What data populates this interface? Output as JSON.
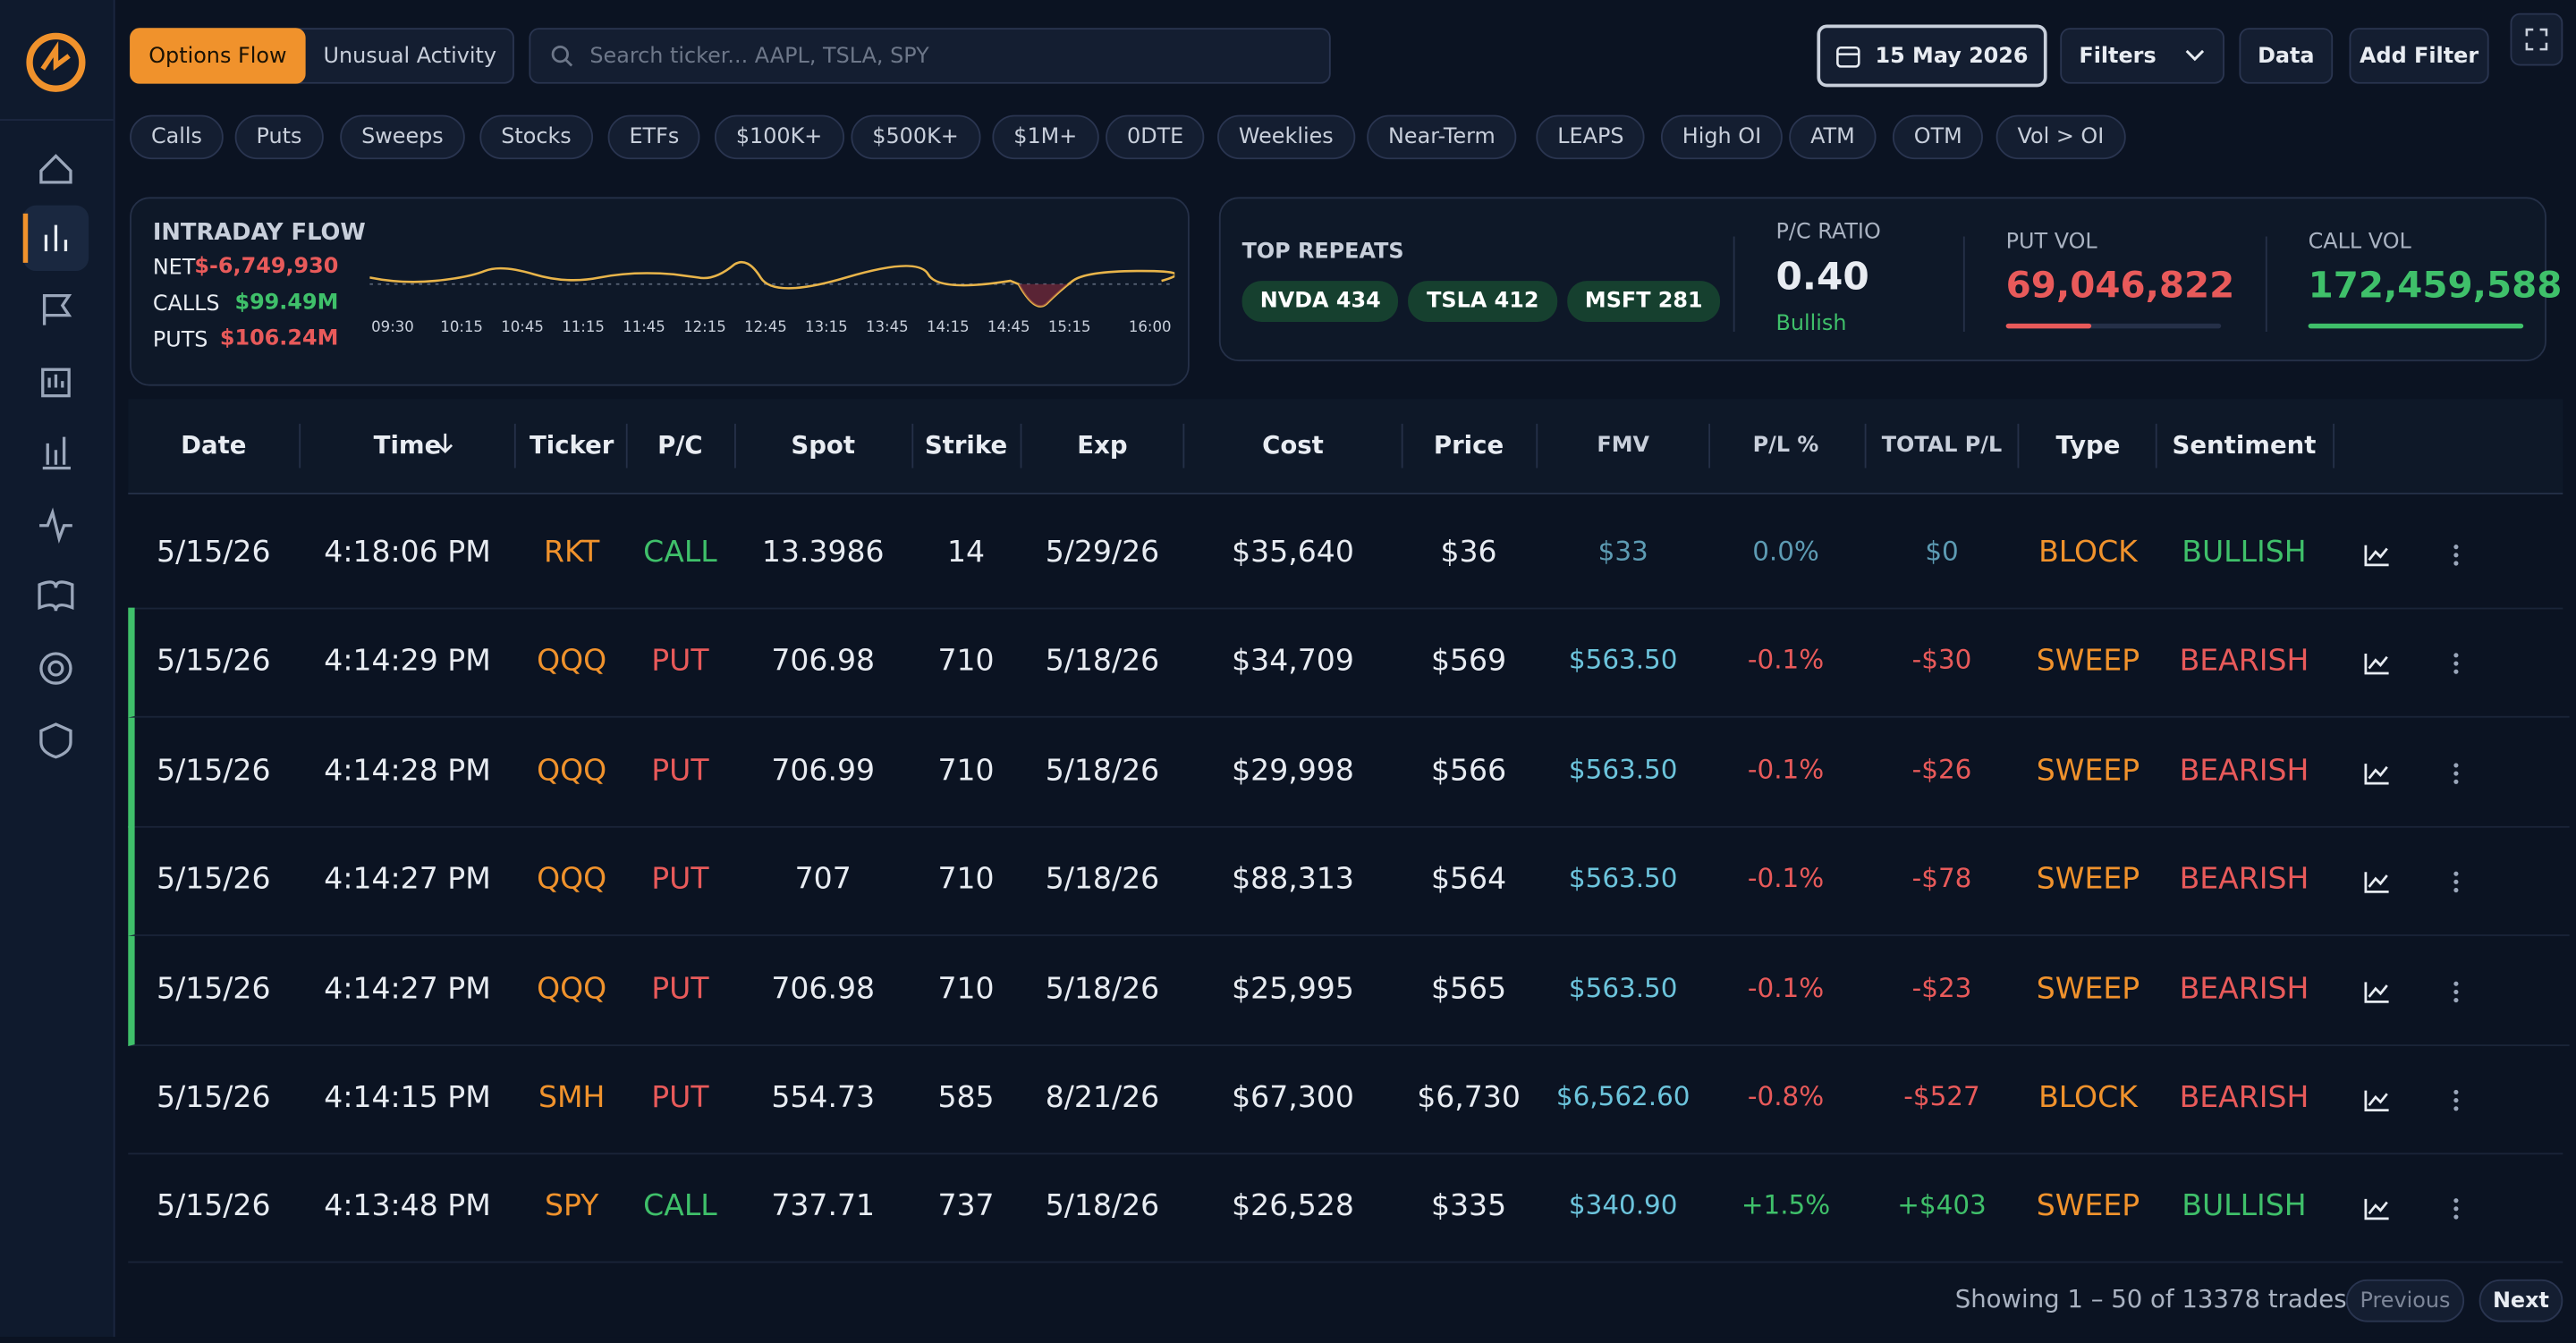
{
  "tabs": [
    "Options Flow",
    "Unusual Activity"
  ],
  "search_placeholder": "Search ticker... AAPL, TSLA, SPY",
  "date": "15 May 2026",
  "buttons": {
    "filters": "Filters",
    "data": "Data",
    "add_filter": "Add Filter"
  },
  "chips": [
    "Calls",
    "Puts",
    "Sweeps",
    "Stocks",
    "ETFs",
    "$100K+",
    "$500K+",
    "$1M+",
    "0DTE",
    "Weeklies",
    "Near-Term",
    "LEAPS",
    "High OI",
    "ATM",
    "OTM",
    "Vol > OI"
  ],
  "intraday": {
    "title": "INTRADAY FLOW",
    "rows": [
      {
        "label": "NET",
        "value": "$-6,749,930"
      },
      {
        "label": "CALLS",
        "value": "$99.49M"
      },
      {
        "label": "PUTS",
        "value": "$106.24M"
      }
    ],
    "times": [
      "09:30",
      "10:15",
      "10:45",
      "11:15",
      "11:45",
      "12:15",
      "12:45",
      "13:15",
      "13:45",
      "14:15",
      "14:45",
      "15:15",
      "16:00"
    ]
  },
  "repeats": {
    "title": "TOP REPEATS",
    "items": [
      "NVDA 434",
      "TSLA 412",
      "MSFT 281"
    ]
  },
  "pc_ratio": {
    "label": "P/C RATIO",
    "value": "0.40",
    "note": "Bullish"
  },
  "put_vol": {
    "label": "PUT VOL",
    "value": "69,046,822"
  },
  "call_vol": {
    "label": "CALL VOL",
    "value": "172,459,588"
  },
  "table": {
    "columns": [
      "Date",
      "Time",
      "Ticker",
      "P/C",
      "Spot",
      "Strike",
      "Exp",
      "Cost",
      "Price",
      "FMV",
      "P/L %",
      "TOTAL P/L",
      "Type",
      "Sentiment"
    ],
    "rows": [
      [
        "5/15/26",
        "4:18:06 PM",
        "RKT",
        "CALL",
        "13.3986",
        "14",
        "5/29/26",
        "$35,640",
        "$36",
        "$33",
        "0.0%",
        "$0",
        "BLOCK",
        "BULLISH"
      ],
      [
        "5/15/26",
        "4:14:29 PM",
        "QQQ",
        "PUT",
        "706.98",
        "710",
        "5/18/26",
        "$34,709",
        "$569",
        "$563.50",
        "-0.1%",
        "-$30",
        "SWEEP",
        "BEARISH"
      ],
      [
        "5/15/26",
        "4:14:28 PM",
        "QQQ",
        "PUT",
        "706.99",
        "710",
        "5/18/26",
        "$29,998",
        "$566",
        "$563.50",
        "-0.1%",
        "-$26",
        "SWEEP",
        "BEARISH"
      ],
      [
        "5/15/26",
        "4:14:27 PM",
        "QQQ",
        "PUT",
        "707",
        "710",
        "5/18/26",
        "$88,313",
        "$564",
        "$563.50",
        "-0.1%",
        "-$78",
        "SWEEP",
        "BEARISH"
      ],
      [
        "5/15/26",
        "4:14:27 PM",
        "QQQ",
        "PUT",
        "706.98",
        "710",
        "5/18/26",
        "$25,995",
        "$565",
        "$563.50",
        "-0.1%",
        "-$23",
        "SWEEP",
        "BEARISH"
      ],
      [
        "5/15/26",
        "4:14:15 PM",
        "SMH",
        "PUT",
        "554.73",
        "585",
        "8/21/26",
        "$67,300",
        "$6,730",
        "$6,562.60",
        "-0.8%",
        "-$527",
        "BLOCK",
        "BEARISH"
      ],
      [
        "5/15/26",
        "4:13:48 PM",
        "SPY",
        "CALL",
        "737.71",
        "737",
        "5/18/26",
        "$26,528",
        "$335",
        "$340.90",
        "+1.5%",
        "+$403",
        "SWEEP",
        "BULLISH"
      ]
    ]
  },
  "footer": {
    "showing": "Showing 1 – 50 of 13378 trades",
    "prev": "Previous",
    "next": "Next"
  }
}
